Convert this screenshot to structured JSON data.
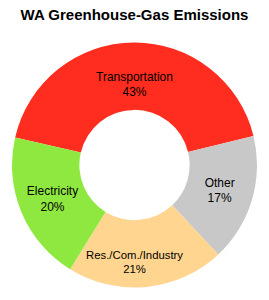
{
  "chart_data": {
    "type": "donut",
    "title": "WA Greenhouse-Gas Emissions",
    "categories": [
      "Transportation",
      "Other",
      "Res./Com./Industry",
      "Electricity"
    ],
    "values": [
      43,
      17,
      21,
      20
    ],
    "value_labels": [
      "43%",
      "17%",
      "21%",
      "20%"
    ],
    "colors": [
      "#ff2d1f",
      "#c8c8c8",
      "#ffd58f",
      "#8fe83f"
    ],
    "data_labels": true
  }
}
